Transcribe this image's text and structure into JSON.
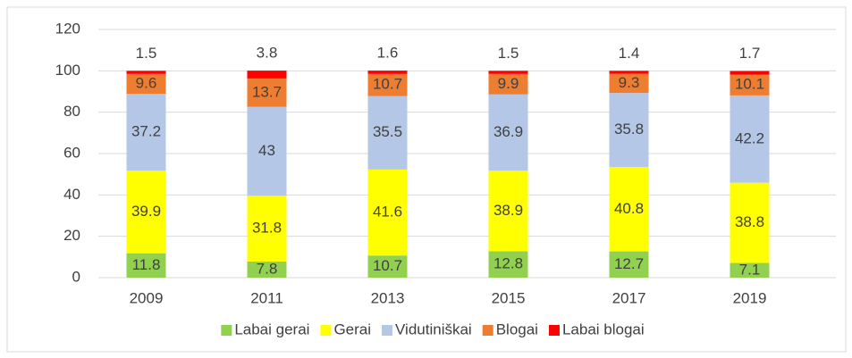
{
  "chart_data": {
    "type": "bar",
    "stacked": true,
    "categories": [
      "2009",
      "2011",
      "2013",
      "2015",
      "2017",
      "2019"
    ],
    "series": [
      {
        "name": "Labai gerai",
        "color": "#92d050",
        "values": [
          11.8,
          7.8,
          10.7,
          12.8,
          12.7,
          7.1
        ]
      },
      {
        "name": "Gerai",
        "color": "#ffff00",
        "values": [
          39.9,
          31.8,
          41.6,
          38.9,
          40.8,
          38.8
        ]
      },
      {
        "name": "Vidutiniškai",
        "color": "#b4c7e7",
        "values": [
          37.2,
          43,
          35.5,
          36.9,
          35.8,
          42.2
        ]
      },
      {
        "name": "Blogai",
        "color": "#ed7d31",
        "values": [
          9.6,
          13.7,
          10.7,
          9.9,
          9.3,
          10.1
        ]
      },
      {
        "name": "Labai blogai",
        "color": "#ff0000",
        "values": [
          1.5,
          3.8,
          1.6,
          1.5,
          1.4,
          1.7
        ]
      }
    ],
    "ylim": [
      0,
      120
    ],
    "yticks": [
      0,
      20,
      40,
      60,
      80,
      100,
      120
    ],
    "grid": true,
    "legend": "bottom"
  }
}
